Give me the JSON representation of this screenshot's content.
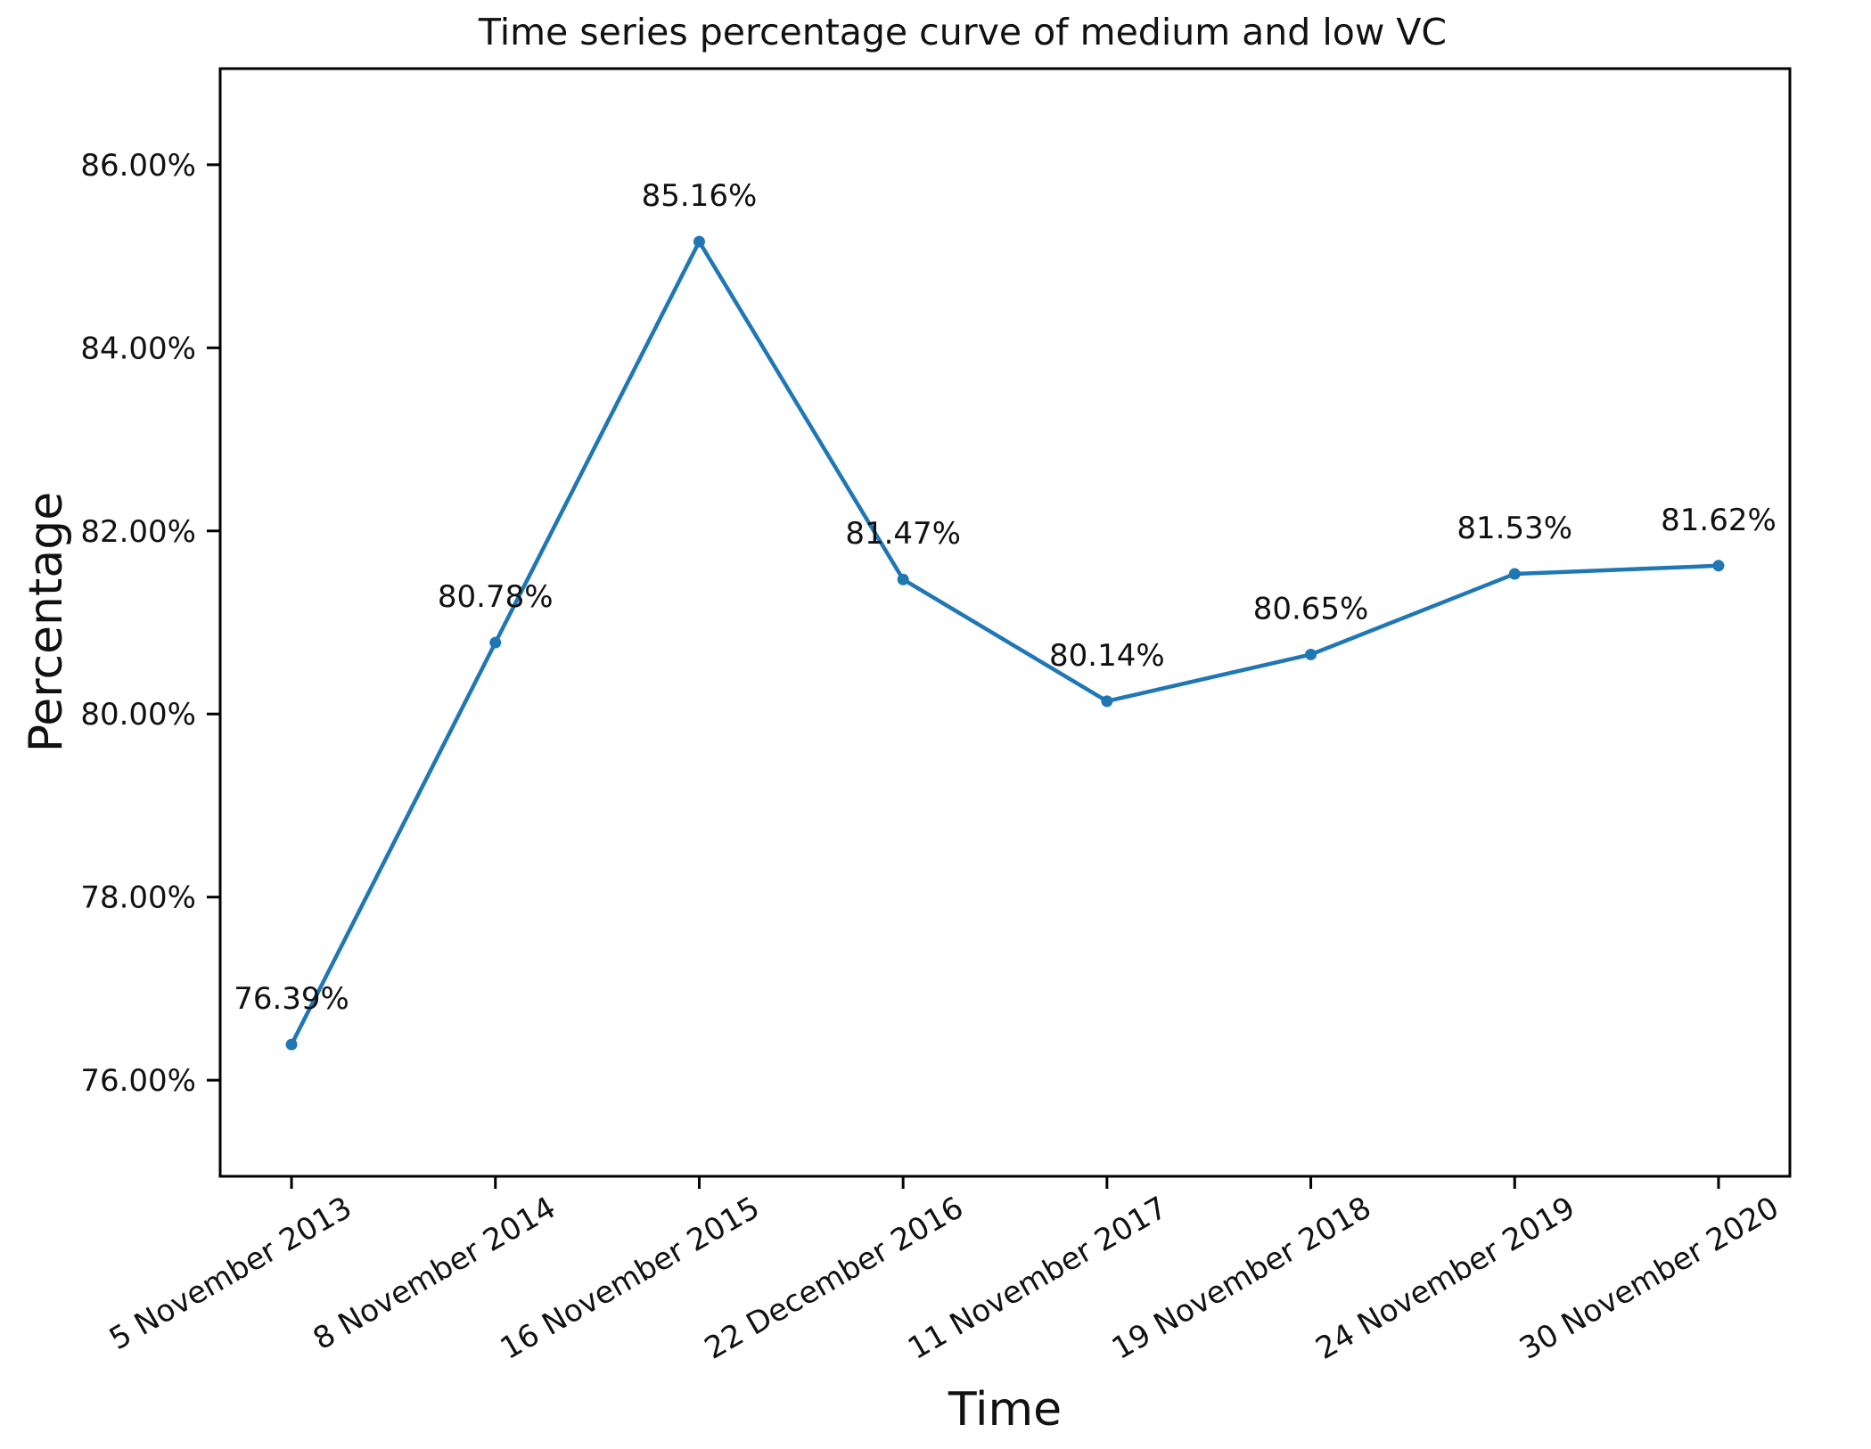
{
  "figure": {
    "background": "#ffffff",
    "text_color": "#111111",
    "axis_color": "#000000"
  },
  "chart_data": {
    "type": "line",
    "title": "Time series percentage curve of medium and low VC",
    "xlabel": "Time",
    "ylabel": "Percentage",
    "categories": [
      "5 November 2013",
      "8 November 2014",
      "16 November 2015",
      "22 December 2016",
      "11 November 2017",
      "19 November 2018",
      "24 November 2019",
      "30 November 2020"
    ],
    "series": [
      {
        "name": "medium and low VC",
        "values": [
          76.39,
          80.78,
          85.16,
          81.47,
          80.14,
          80.65,
          81.53,
          81.62
        ],
        "color": "#1f77b4",
        "marker": "circle"
      }
    ],
    "point_labels": [
      "76.39%",
      "80.78%",
      "85.16%",
      "81.47%",
      "80.14%",
      "80.65%",
      "81.53%",
      "81.62%"
    ],
    "ytick_labels": [
      "76.00%",
      "78.00%",
      "80.00%",
      "82.00%",
      "84.00%",
      "86.00%"
    ],
    "ytick_values": [
      76,
      78,
      80,
      82,
      84,
      86
    ],
    "ylim": [
      74.95,
      87.05
    ],
    "grid": false,
    "legend": null,
    "x_tick_rotation_deg": -30
  }
}
